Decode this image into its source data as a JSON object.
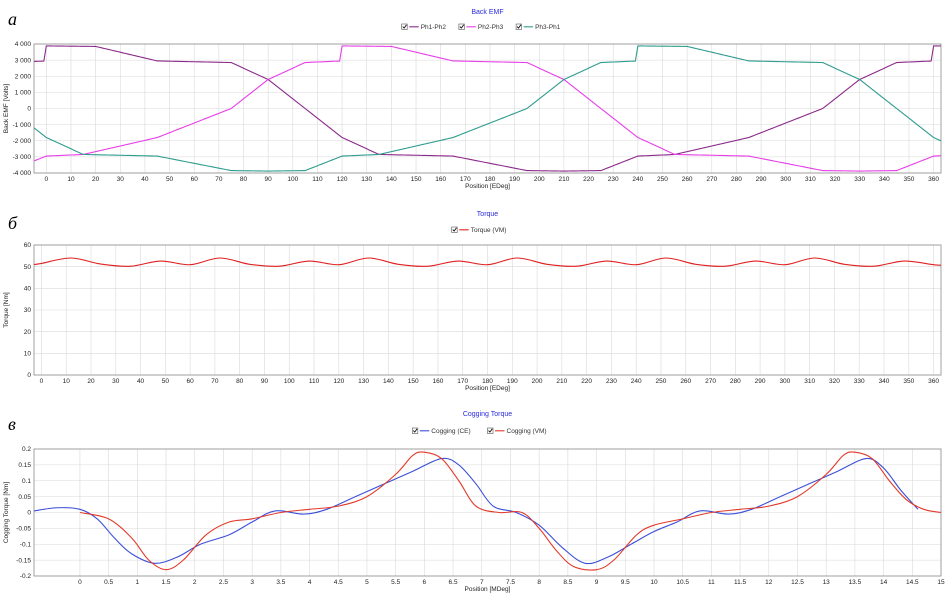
{
  "chart_data": [
    {
      "type": "line",
      "panel_letter": "а",
      "title": "Back EMF",
      "xlabel": "Position [EDeg]",
      "ylabel": "Back EMF [Volts]",
      "xlim": [
        -5,
        363
      ],
      "ylim": [
        -4000,
        4000
      ],
      "x_ticks": [
        0,
        10,
        20,
        30,
        40,
        50,
        60,
        70,
        80,
        90,
        100,
        110,
        120,
        130,
        140,
        150,
        160,
        170,
        180,
        190,
        200,
        210,
        220,
        230,
        240,
        250,
        260,
        270,
        280,
        290,
        300,
        310,
        320,
        330,
        340,
        350,
        360
      ],
      "y_ticks": [
        -4000,
        -3000,
        -2000,
        -1000,
        0,
        1000,
        2000,
        3000,
        4000
      ],
      "y_tick_labels": [
        "-4 000",
        "-3 000",
        "-2 000",
        "-1 000",
        "0",
        "1 000",
        "2 000",
        "3 000",
        "4 000"
      ],
      "grid": true,
      "legend_position": "top-center",
      "series": [
        {
          "name": "Ph1-Ph2",
          "color": "#8b2a8b",
          "phase_deg": 0
        },
        {
          "name": "Ph2-Ph3",
          "color": "#e83ee8",
          "phase_deg": 120
        },
        {
          "name": "Ph3-Ph1",
          "color": "#2e9c8f",
          "phase_deg": 240
        }
      ],
      "waveform": {
        "x": [
          -15,
          0,
          20,
          45,
          75,
          90,
          105,
          120,
          135,
          165,
          195,
          210,
          225,
          240,
          255,
          285,
          315,
          330,
          345,
          360
        ],
        "y": [
          3880,
          3880,
          3850,
          2950,
          2850,
          1800,
          0,
          -1800,
          -2850,
          -2950,
          -3850,
          -3880,
          -3850,
          -2950,
          -2850,
          -1800,
          0,
          1800,
          2850,
          2950
        ]
      }
    },
    {
      "type": "line",
      "panel_letter": "б",
      "title": "Torque",
      "xlabel": "Position [EDeg]",
      "ylabel": "Torque [Nm]",
      "xlim": [
        -3,
        363
      ],
      "ylim": [
        0,
        60
      ],
      "x_ticks": [
        0,
        10,
        20,
        30,
        40,
        50,
        60,
        70,
        80,
        90,
        100,
        110,
        120,
        130,
        140,
        150,
        160,
        170,
        180,
        190,
        200,
        210,
        220,
        230,
        240,
        250,
        260,
        270,
        280,
        290,
        300,
        310,
        320,
        330,
        340,
        350,
        360
      ],
      "x_tick_labels": [
        "0",
        "10",
        "20",
        "30",
        "40",
        "50",
        "60",
        "70",
        "80",
        "90",
        "100",
        "110",
        "120",
        "130",
        "140",
        "150",
        "160",
        "170",
        "180",
        "190",
        "200",
        "210",
        "220",
        "230",
        "240",
        "250",
        "260",
        "270",
        "280",
        "290",
        "300",
        "310",
        "320",
        "330",
        "340",
        "350",
        "360"
      ],
      "y_ticks": [
        0,
        10,
        20,
        30,
        40,
        50,
        60
      ],
      "grid": true,
      "legend_position": "top-center",
      "series": [
        {
          "name": "Torque (VM)",
          "color": "#e02020",
          "x": [
            -3,
            0,
            12,
            24,
            36,
            48,
            60,
            72,
            84,
            96,
            108,
            120,
            132,
            144,
            156,
            168,
            180,
            192,
            204,
            216,
            228,
            240,
            252,
            264,
            276,
            288,
            300,
            312,
            324,
            336,
            348,
            360,
            363
          ],
          "y": [
            51.0,
            51.5,
            54.0,
            51.2,
            50.2,
            52.6,
            50.9,
            54.0,
            51.1,
            50.2,
            52.6,
            50.9,
            54.0,
            51.1,
            50.2,
            52.6,
            50.9,
            54.0,
            51.1,
            50.2,
            52.6,
            50.9,
            54.0,
            51.1,
            50.2,
            52.6,
            50.9,
            54.0,
            51.1,
            50.2,
            52.6,
            50.9,
            50.7
          ]
        }
      ]
    },
    {
      "type": "line",
      "panel_letter": "в",
      "title": "Cogging Torque",
      "xlabel": "Position [MDeg]",
      "ylabel": "Cogging Torque [Nm]",
      "xlim": [
        -0.8,
        15
      ],
      "ylim": [
        -0.2,
        0.2
      ],
      "x_ticks": [
        0,
        0.5,
        1,
        1.5,
        2,
        2.5,
        3,
        3.5,
        4,
        4.5,
        5,
        5.5,
        6,
        6.5,
        7,
        7.5,
        8,
        8.5,
        9,
        9.5,
        10,
        10.5,
        11,
        11.5,
        12,
        12.5,
        13,
        13.5,
        14,
        14.5,
        15
      ],
      "y_ticks": [
        -0.2,
        -0.15,
        -0.1,
        -0.05,
        0,
        0.05,
        0.1,
        0.15,
        0.2
      ],
      "y_tick_labels": [
        "-0.2",
        "-0.15",
        "-0.1",
        "-0.05",
        "0",
        "0.05",
        "0.1",
        "0.15",
        "0.2"
      ],
      "grid": true,
      "legend_position": "top-center",
      "series": [
        {
          "name": "Cogging (CE)",
          "color": "#3a4fd8",
          "x": [
            -0.8,
            -0.4,
            0,
            0.3,
            0.6,
            0.9,
            1.3,
            1.7,
            2.1,
            2.6,
            3.0,
            3.4,
            3.9,
            4.3,
            4.8,
            5.3,
            5.8,
            6.3,
            6.6,
            6.9,
            7.2,
            7.6,
            8.0,
            8.4,
            8.8,
            9.2,
            9.6,
            10.0,
            10.4,
            10.8,
            11.3,
            11.7,
            12.2,
            12.7,
            13.2,
            13.7,
            14.0,
            14.3,
            14.6
          ],
          "y": [
            0.005,
            0.015,
            0.01,
            -0.02,
            -0.08,
            -0.13,
            -0.16,
            -0.14,
            -0.1,
            -0.07,
            -0.03,
            0.005,
            -0.005,
            0.01,
            0.05,
            0.09,
            0.13,
            0.17,
            0.15,
            0.09,
            0.02,
            0.0,
            -0.04,
            -0.11,
            -0.16,
            -0.14,
            -0.1,
            -0.06,
            -0.03,
            0.005,
            -0.005,
            0.01,
            0.05,
            0.09,
            0.13,
            0.17,
            0.14,
            0.07,
            0.01
          ]
        },
        {
          "name": "Cogging (VM)",
          "color": "#e23a2a",
          "x": [
            0,
            0.5,
            0.9,
            1.2,
            1.5,
            1.8,
            2.2,
            2.6,
            3.0,
            3.5,
            4.0,
            4.5,
            5.0,
            5.5,
            5.8,
            6.0,
            6.3,
            6.6,
            6.9,
            7.3,
            7.7,
            8.0,
            8.3,
            8.6,
            9.0,
            9.3,
            9.7,
            10.0,
            10.5,
            11.0,
            11.5,
            12.0,
            12.5,
            13.0,
            13.3,
            13.5,
            13.8,
            14.1,
            14.4,
            14.7,
            15.0
          ],
          "y": [
            0.0,
            -0.02,
            -0.08,
            -0.15,
            -0.18,
            -0.15,
            -0.07,
            -0.03,
            -0.02,
            0.0,
            0.01,
            0.02,
            0.05,
            0.12,
            0.18,
            0.19,
            0.17,
            0.1,
            0.02,
            0.0,
            0.0,
            -0.05,
            -0.12,
            -0.17,
            -0.18,
            -0.15,
            -0.07,
            -0.04,
            -0.02,
            0.0,
            0.01,
            0.02,
            0.05,
            0.12,
            0.18,
            0.19,
            0.17,
            0.1,
            0.04,
            0.01,
            0.0
          ]
        }
      ]
    }
  ]
}
